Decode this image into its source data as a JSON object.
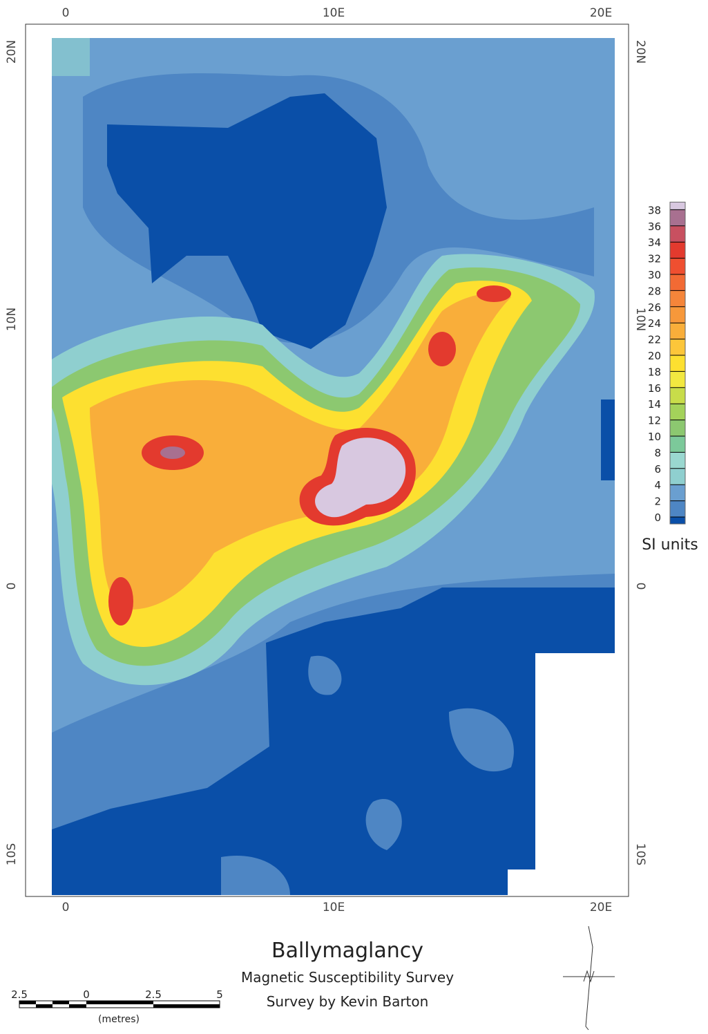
{
  "title": "Ballymaglancy",
  "subtitle": "Magnetic Susceptibility Survey",
  "credit": "Survey by Kevin Barton",
  "axes": {
    "top": [
      "0",
      "10E",
      "20E"
    ],
    "bottom": [
      "0",
      "10E",
      "20E"
    ],
    "left": [
      "20N",
      "10N",
      "0",
      "10S"
    ],
    "right": [
      "20N",
      "10N",
      "0",
      "10S"
    ]
  },
  "legend": {
    "unit": "SI units",
    "ticks": [
      0,
      2,
      4,
      6,
      8,
      10,
      12,
      14,
      16,
      18,
      20,
      22,
      24,
      26,
      28,
      30,
      32,
      34,
      36,
      38
    ],
    "colors": [
      "#0a4fa8",
      "#4e86c4",
      "#6a9fd0",
      "#8fcfcf",
      "#9ad8d0",
      "#7cc99a",
      "#8cc870",
      "#a4d25a",
      "#c8dc4a",
      "#f2e840",
      "#fde030",
      "#fcc63a",
      "#f9ae3a",
      "#f7983a",
      "#f5853a",
      "#f26a34",
      "#ef4f30",
      "#e33a2e",
      "#c85060",
      "#a87090",
      "#d8c8e0"
    ]
  },
  "scale_bar": {
    "labels": [
      "2.5",
      "0",
      "2.5",
      "5"
    ],
    "unit": "(metres)"
  }
}
